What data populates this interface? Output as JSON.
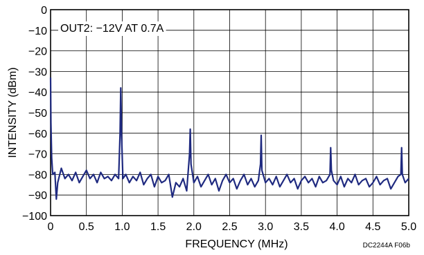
{
  "chart_data": {
    "type": "line",
    "title": "",
    "annotation": "OUT2: −12V AT 0.7A",
    "xlabel": "FREQUENCY (MHz)",
    "ylabel": "INTENSITY (dBm)",
    "figure_id": "DC2244A F06b",
    "xlim": [
      0,
      5.0
    ],
    "ylim": [
      -100,
      0
    ],
    "x_ticks": [
      "0",
      "0.5",
      "1.0",
      "1.5",
      "2.0",
      "2.5",
      "3.0",
      "3.5",
      "4.0",
      "4.5",
      "5.0"
    ],
    "y_ticks": [
      "0",
      "−10",
      "−20",
      "−30",
      "−40",
      "−50",
      "−60",
      "−70",
      "−80",
      "−90",
      "−100"
    ],
    "grid": true,
    "series": [
      {
        "color": "#1f2a80",
        "x": [
          0.0,
          0.005,
          0.015,
          0.03,
          0.06,
          0.08,
          0.1,
          0.15,
          0.2,
          0.25,
          0.3,
          0.35,
          0.4,
          0.45,
          0.5,
          0.55,
          0.6,
          0.65,
          0.7,
          0.75,
          0.8,
          0.85,
          0.9,
          0.95,
          0.97,
          0.98,
          0.99,
          1.01,
          1.05,
          1.1,
          1.15,
          1.2,
          1.25,
          1.3,
          1.35,
          1.4,
          1.45,
          1.5,
          1.55,
          1.6,
          1.65,
          1.7,
          1.75,
          1.8,
          1.85,
          1.9,
          1.94,
          1.95,
          1.96,
          2.0,
          2.05,
          2.1,
          2.15,
          2.2,
          2.25,
          2.3,
          2.35,
          2.4,
          2.45,
          2.5,
          2.55,
          2.6,
          2.65,
          2.7,
          2.75,
          2.8,
          2.85,
          2.9,
          2.93,
          2.94,
          2.95,
          3.0,
          3.05,
          3.1,
          3.15,
          3.2,
          3.25,
          3.3,
          3.35,
          3.4,
          3.45,
          3.5,
          3.55,
          3.6,
          3.65,
          3.7,
          3.75,
          3.8,
          3.85,
          3.9,
          3.91,
          3.92,
          3.95,
          4.0,
          4.05,
          4.1,
          4.15,
          4.2,
          4.25,
          4.3,
          4.35,
          4.4,
          4.45,
          4.5,
          4.55,
          4.6,
          4.65,
          4.7,
          4.75,
          4.8,
          4.85,
          4.89,
          4.9,
          4.91,
          4.95,
          5.0
        ],
        "y": [
          -33,
          -55,
          -72,
          -80,
          -79,
          -92,
          -84,
          -77,
          -82,
          -80,
          -83,
          -79,
          -84,
          -81,
          -78,
          -82,
          -80,
          -84,
          -79,
          -82,
          -81,
          -83,
          -80,
          -82,
          -60,
          -38,
          -60,
          -82,
          -80,
          -84,
          -81,
          -83,
          -79,
          -85,
          -82,
          -80,
          -86,
          -81,
          -84,
          -83,
          -80,
          -91,
          -84,
          -86,
          -82,
          -88,
          -70,
          -58,
          -75,
          -84,
          -81,
          -86,
          -83,
          -80,
          -85,
          -82,
          -88,
          -83,
          -80,
          -84,
          -82,
          -87,
          -83,
          -80,
          -85,
          -82,
          -86,
          -83,
          -75,
          -61,
          -78,
          -84,
          -82,
          -85,
          -81,
          -86,
          -83,
          -80,
          -84,
          -82,
          -87,
          -83,
          -81,
          -84,
          -82,
          -86,
          -81,
          -84,
          -83,
          -80,
          -67,
          -78,
          -83,
          -85,
          -81,
          -86,
          -82,
          -84,
          -80,
          -85,
          -83,
          -82,
          -86,
          -84,
          -81,
          -85,
          -83,
          -82,
          -87,
          -84,
          -81,
          -80,
          -67,
          -80,
          -84,
          -82
        ]
      }
    ]
  }
}
